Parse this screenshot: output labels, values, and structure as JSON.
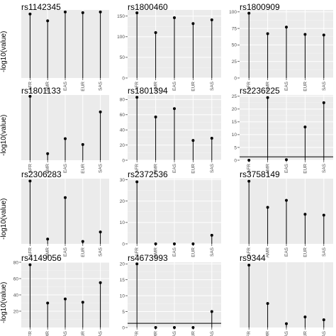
{
  "chart_data": [
    {
      "type": "lollipop",
      "title": "rs1142345",
      "ylabel": "-log10(value)",
      "categories": [
        "AFR",
        "AMR",
        "EAS",
        "EUR",
        "SAS"
      ],
      "values": [
        94,
        84,
        97,
        96,
        97
      ],
      "ylim": [
        0,
        100
      ],
      "yticks": [],
      "hline": null
    },
    {
      "type": "lollipop",
      "title": "rs1800460",
      "ylabel": "",
      "categories": [
        "AFR",
        "AMR",
        "EAS",
        "EUR",
        "SAS"
      ],
      "values": [
        158,
        110,
        146,
        132,
        141
      ],
      "ylim": [
        0,
        165
      ],
      "yticks": [
        0,
        50,
        100,
        150
      ],
      "hline": null
    },
    {
      "type": "lollipop",
      "title": "rs1800909",
      "ylabel": "",
      "categories": [
        "AFR",
        "AMR",
        "EAS",
        "EUR",
        "SAS"
      ],
      "values": [
        98,
        67,
        77,
        66,
        65
      ],
      "ylim": [
        0,
        103
      ],
      "yticks": [
        0,
        25,
        50,
        75,
        100
      ],
      "hline": null
    },
    {
      "type": "lollipop",
      "title": "rs1801133",
      "ylabel": "-log10(value)",
      "categories": [
        "AFR",
        "AMR",
        "EAS",
        "EUR",
        "SAS"
      ],
      "values": [
        98,
        10,
        33,
        24,
        74
      ],
      "ylim": [
        0,
        100
      ],
      "yticks": [],
      "hline": null
    },
    {
      "type": "lollipop",
      "title": "rs1801394",
      "ylabel": "",
      "categories": [
        "AFR",
        "AMR",
        "EAS",
        "EUR",
        "SAS"
      ],
      "values": [
        83,
        57,
        68,
        26,
        29
      ],
      "ylim": [
        0,
        86
      ],
      "yticks": [
        0,
        20,
        40,
        60,
        80
      ],
      "hline": null
    },
    {
      "type": "lollipop",
      "title": "rs2236225",
      "ylabel": "",
      "categories": [
        "AFR",
        "AMR",
        "EAS",
        "EUR",
        "SAS"
      ],
      "values": [
        0,
        24.5,
        0.2,
        13,
        22.5
      ],
      "ylim": [
        0,
        25.5
      ],
      "yticks": [
        0,
        5,
        10,
        15,
        20,
        25
      ],
      "hline": 1.3
    },
    {
      "type": "lollipop",
      "title": "rs2306283",
      "ylabel": "-log10(value)",
      "categories": [
        "AFR",
        "AMR",
        "EAS",
        "EUR",
        "SAS"
      ],
      "values": [
        53,
        4,
        39,
        2,
        10
      ],
      "ylim": [
        0,
        55
      ],
      "yticks": [],
      "hline": null
    },
    {
      "type": "lollipop",
      "title": "rs2372536",
      "ylabel": "",
      "categories": [
        "AFR",
        "AMR",
        "EAS",
        "EUR",
        "SAS"
      ],
      "values": [
        29,
        0,
        0,
        0,
        4
      ],
      "ylim": [
        0,
        30.5
      ],
      "yticks": [
        0,
        10,
        20,
        30
      ],
      "hline": null
    },
    {
      "type": "lollipop",
      "title": "rs3758149",
      "ylabel": "",
      "categories": [
        "AFR",
        "AMR",
        "EAS",
        "EUR",
        "SAS"
      ],
      "values": [
        36,
        21,
        25,
        17,
        16.5
      ],
      "ylim": [
        0,
        37.5
      ],
      "yticks": [],
      "hline": null
    },
    {
      "type": "lollipop",
      "title": "rs4149056",
      "ylabel": "-log10(value)",
      "categories": [
        "AFR",
        "AMR",
        "EAS",
        "EUR",
        "SAS"
      ],
      "values": [
        77,
        30,
        35,
        31,
        55
      ],
      "ylim": [
        0,
        80
      ],
      "yticks": [
        20,
        40,
        60,
        80
      ],
      "hline": null
    },
    {
      "type": "lollipop",
      "title": "rs4673993",
      "ylabel": "",
      "categories": [
        "AFR",
        "AMR",
        "EAS",
        "EUR",
        "SAS"
      ],
      "values": [
        20,
        0,
        0,
        0,
        5
      ],
      "ylim": [
        0,
        20.5
      ],
      "yticks": [
        0,
        5,
        10,
        15,
        20
      ],
      "hline": 1.3
    },
    {
      "type": "lollipop",
      "title": "rs9344",
      "ylabel": "",
      "categories": [
        "AFR",
        "AMR",
        "EAS",
        "EUR",
        "SAS"
      ],
      "values": [
        65,
        25,
        4,
        11,
        8
      ],
      "ylim": [
        0,
        68
      ],
      "yticks": [],
      "hline": null
    }
  ]
}
